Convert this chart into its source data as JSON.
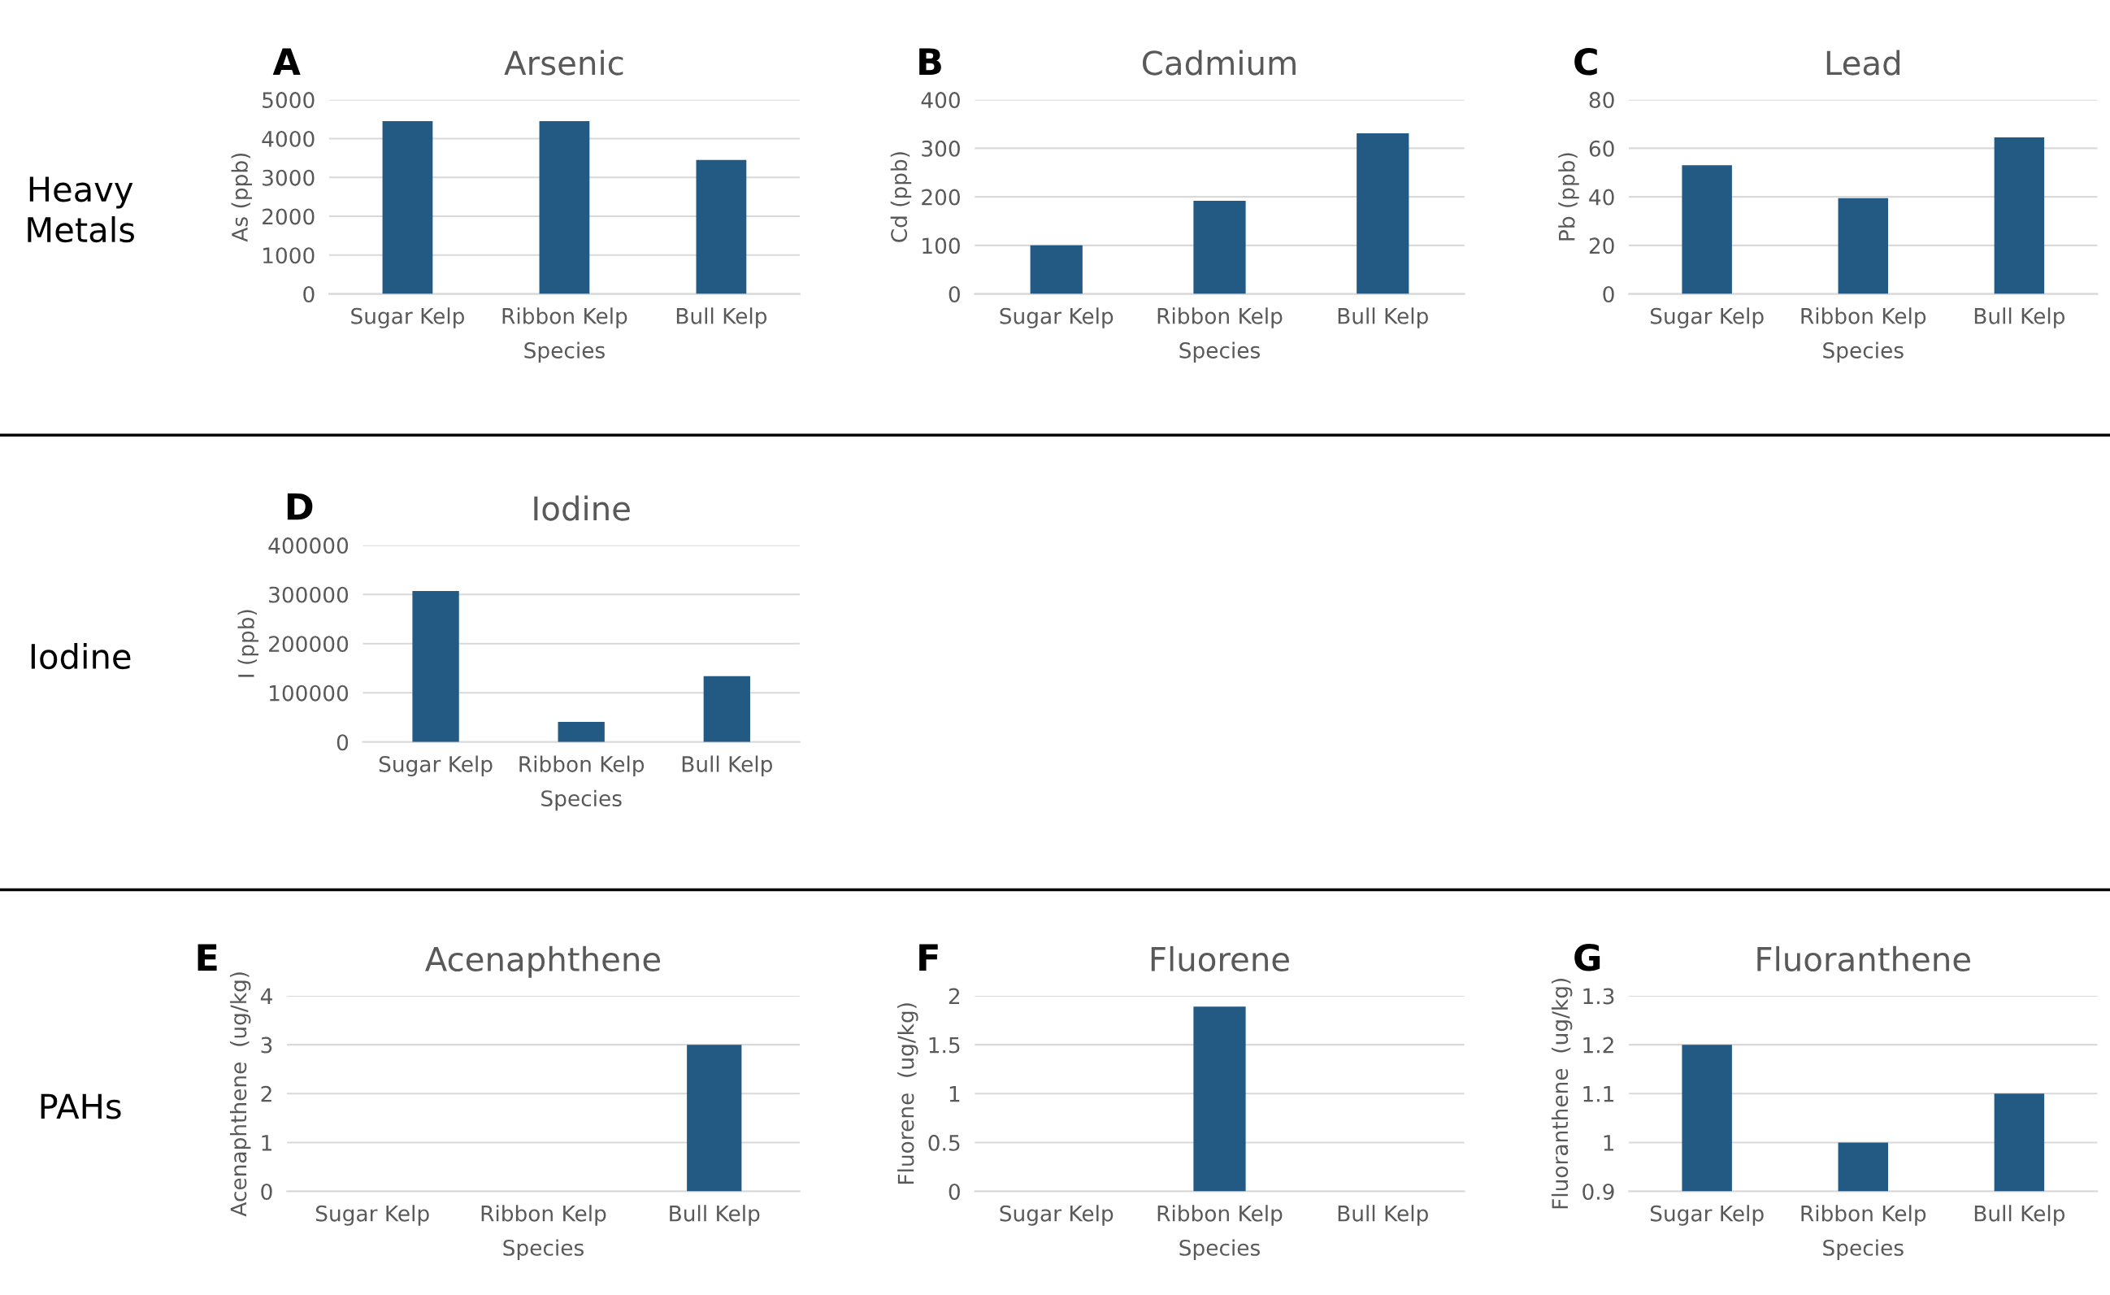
{
  "chart_data": [
    {
      "type": "bar",
      "title": "Arsenic",
      "xlabel": "Species",
      "ylabel": "As (ppb)",
      "categories": [
        "Sugar Kelp",
        "Ribbon Kelp",
        "Bull Kelp"
      ],
      "values": [
        4450,
        4450,
        3450
      ],
      "color": "#235a84",
      "ylim": [
        0,
        5000
      ],
      "yticks": [
        0,
        1000,
        2000,
        3000,
        4000,
        5000
      ],
      "grid": "y",
      "annotations": [
        "A",
        "Heavy\nMetals"
      ]
    },
    {
      "type": "bar",
      "title": "Cadmium",
      "xlabel": "Species",
      "ylabel": "Cd (ppb)",
      "categories": [
        "Sugar Kelp",
        "Ribbon Kelp",
        "Bull Kelp"
      ],
      "values": [
        100,
        192,
        331
      ],
      "color": "#235a84",
      "ylim": [
        0,
        400
      ],
      "yticks": [
        0,
        100,
        200,
        300,
        400
      ],
      "grid": "y",
      "annotations": [
        "B"
      ]
    },
    {
      "type": "bar",
      "title": "Lead",
      "xlabel": "Species",
      "ylabel": "Pb (ppb)",
      "categories": [
        "Sugar Kelp",
        "Ribbon Kelp",
        "Bull Kelp"
      ],
      "values": [
        53,
        39.5,
        64.5
      ],
      "color": "#235a84",
      "ylim": [
        0,
        80
      ],
      "yticks": [
        0,
        20,
        40,
        60,
        80
      ],
      "grid": "y",
      "annotations": [
        "C"
      ]
    },
    {
      "type": "bar",
      "title": "Iodine",
      "xlabel": "Species",
      "ylabel": "I (ppb)",
      "categories": [
        "Sugar Kelp",
        "Ribbon Kelp",
        "Bull Kelp"
      ],
      "values": [
        307000,
        41000,
        134000
      ],
      "color": "#235a84",
      "ylim": [
        0,
        400000
      ],
      "yticks": [
        0,
        100000,
        200000,
        300000,
        400000
      ],
      "grid": "y",
      "annotations": [
        "D",
        "Iodine"
      ]
    },
    {
      "type": "bar",
      "title": "Acenaphthene",
      "xlabel": "Species",
      "ylabel": "Acenaphthene  (ug/kg)",
      "categories": [
        "Sugar Kelp",
        "Ribbon Kelp",
        "Bull Kelp"
      ],
      "values": [
        null,
        null,
        3.0
      ],
      "color": "#235a84",
      "ylim": [
        0,
        4
      ],
      "yticks": [
        0,
        1,
        2,
        3,
        4
      ],
      "grid": "y",
      "annotations": [
        "E",
        "PAHs"
      ]
    },
    {
      "type": "bar",
      "title": "Fluorene",
      "xlabel": "Species",
      "ylabel": "Fluorene  (ug/kg)",
      "categories": [
        "Sugar Kelp",
        "Ribbon Kelp",
        "Bull Kelp"
      ],
      "values": [
        null,
        1.89,
        null
      ],
      "color": "#235a84",
      "ylim": [
        0,
        2
      ],
      "yticks": [
        0,
        0.5,
        1,
        1.5,
        2
      ],
      "grid": "y",
      "annotations": [
        "F"
      ]
    },
    {
      "type": "bar",
      "title": "Fluoranthene",
      "xlabel": "Species",
      "ylabel": "Fluoranthene  (ug/kg)",
      "categories": [
        "Sugar Kelp",
        "Ribbon Kelp",
        "Bull Kelp"
      ],
      "values": [
        1.2,
        1.0,
        1.1
      ],
      "color": "#235a84",
      "ylim": [
        0.9,
        1.3
      ],
      "yticks": [
        0.9,
        1,
        1.1,
        1.2,
        1.3
      ],
      "grid": "y",
      "annotations": [
        "G"
      ]
    }
  ]
}
